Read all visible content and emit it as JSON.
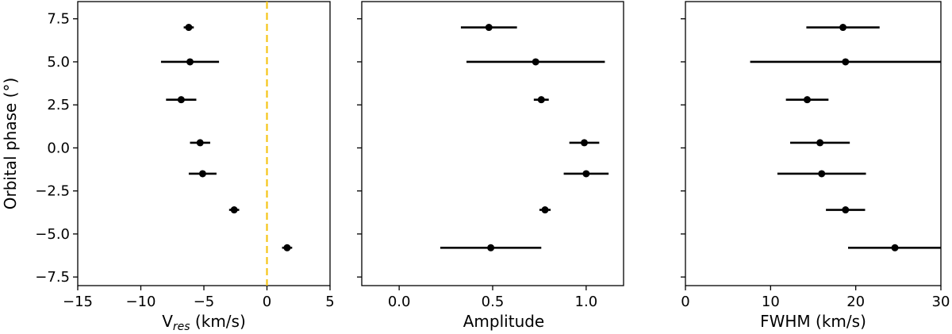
{
  "chart_data": [
    {
      "type": "scatter",
      "panel": "left",
      "xlabel": "V_res (km/s)",
      "xlabel_parts": {
        "main": "V",
        "sub": "res",
        "rest": " (km/s)"
      },
      "ylabel": "Orbital phase (°)",
      "xlim": [
        -15,
        5
      ],
      "ylim": [
        -8.0,
        8.5
      ],
      "xticks": [
        -15,
        -10,
        -5,
        0,
        5
      ],
      "xtick_labels": [
        "−15",
        "−10",
        "−5",
        "0",
        "5"
      ],
      "yticks": [
        7.5,
        5.0,
        2.5,
        0.0,
        -2.5,
        -5.0,
        -7.5
      ],
      "ytick_labels": [
        "7.5",
        "5.0",
        "2.5",
        "0.0",
        "−2.5",
        "−5.0",
        "−7.5"
      ],
      "reference_line": {
        "x": 0,
        "style": "dashed",
        "color": "#f5c518"
      },
      "points": [
        {
          "y": 7.0,
          "x": -6.2,
          "xerr_low": 0.4,
          "xerr_high": 0.4
        },
        {
          "y": 5.0,
          "x": -6.1,
          "xerr_low": 2.3,
          "xerr_high": 2.3
        },
        {
          "y": 2.8,
          "x": -6.8,
          "xerr_low": 1.2,
          "xerr_high": 1.2
        },
        {
          "y": 0.3,
          "x": -5.3,
          "xerr_low": 0.8,
          "xerr_high": 0.8
        },
        {
          "y": -1.5,
          "x": -5.1,
          "xerr_low": 1.1,
          "xerr_high": 1.1
        },
        {
          "y": -3.6,
          "x": -2.6,
          "xerr_low": 0.4,
          "xerr_high": 0.4
        },
        {
          "y": -5.8,
          "x": 1.6,
          "xerr_low": 0.4,
          "xerr_high": 0.4
        }
      ]
    },
    {
      "type": "scatter",
      "panel": "middle",
      "xlabel": "Amplitude",
      "xlim": [
        -0.2,
        1.2
      ],
      "ylim": [
        -8.0,
        8.5
      ],
      "xticks": [
        0.0,
        0.5,
        1.0
      ],
      "xtick_labels": [
        "0.0",
        "0.5",
        "1.0"
      ],
      "points": [
        {
          "y": 7.0,
          "x": 0.48,
          "xerr_low": 0.15,
          "xerr_high": 0.15
        },
        {
          "y": 5.0,
          "x": 0.73,
          "xerr_low": 0.37,
          "xerr_high": 0.37
        },
        {
          "y": 2.8,
          "x": 0.76,
          "xerr_low": 0.04,
          "xerr_high": 0.04
        },
        {
          "y": 0.3,
          "x": 0.99,
          "xerr_low": 0.08,
          "xerr_high": 0.08
        },
        {
          "y": -1.5,
          "x": 1.0,
          "xerr_low": 0.12,
          "xerr_high": 0.12
        },
        {
          "y": -3.6,
          "x": 0.78,
          "xerr_low": 0.03,
          "xerr_high": 0.03
        },
        {
          "y": -5.8,
          "x": 0.49,
          "xerr_low": 0.27,
          "xerr_high": 0.27
        }
      ]
    },
    {
      "type": "scatter",
      "panel": "right",
      "xlabel": "FWHM (km/s)",
      "xlim": [
        0,
        30
      ],
      "ylim": [
        -8.0,
        8.5
      ],
      "xticks": [
        0,
        10,
        20,
        30
      ],
      "xtick_labels": [
        "0",
        "10",
        "20",
        "30"
      ],
      "points": [
        {
          "y": 7.0,
          "x": 18.5,
          "xerr_low": 4.3,
          "xerr_high": 4.3
        },
        {
          "y": 5.0,
          "x": 18.8,
          "xerr_low": 11.2,
          "xerr_high": 11.2
        },
        {
          "y": 2.8,
          "x": 14.3,
          "xerr_low": 2.5,
          "xerr_high": 2.5
        },
        {
          "y": 0.3,
          "x": 15.8,
          "xerr_low": 3.5,
          "xerr_high": 3.5
        },
        {
          "y": -1.5,
          "x": 16.0,
          "xerr_low": 5.2,
          "xerr_high": 5.2
        },
        {
          "y": -3.6,
          "x": 18.8,
          "xerr_low": 2.3,
          "xerr_high": 2.3
        },
        {
          "y": -5.8,
          "x": 24.6,
          "xerr_low": 5.5,
          "xerr_high": 5.4
        }
      ]
    }
  ],
  "colors": {
    "marker": "#000000",
    "refline": "#f5c518"
  }
}
